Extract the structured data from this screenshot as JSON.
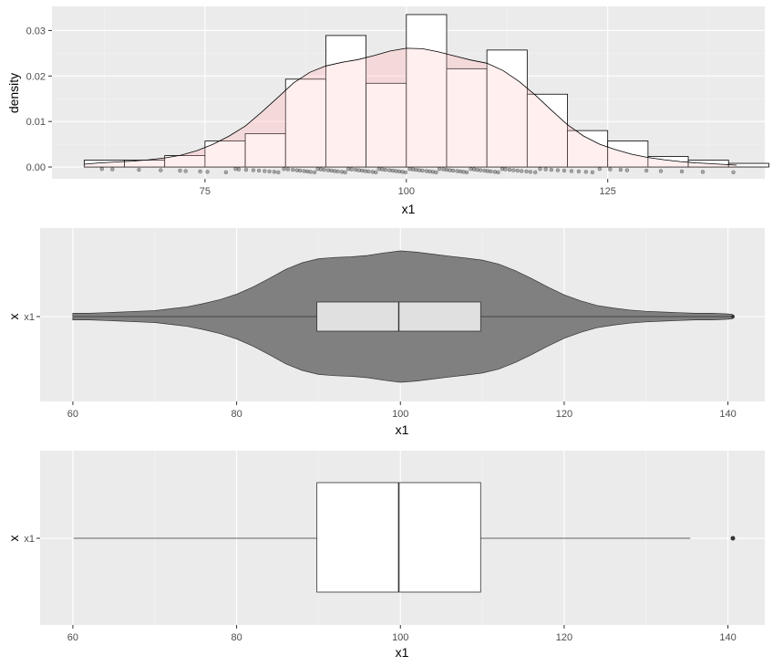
{
  "colors": {
    "panel_bg": "#ebebeb",
    "grid_major": "#ffffff",
    "grid_minor": "#f3f3f3",
    "hist_fill": "#ffffff",
    "hist_stroke": "#000000",
    "density_fill": "#ffc0c0",
    "violin_fill": "#808080",
    "inner_box_fill": "#e0e0e0",
    "box_fill": "#ffffff"
  },
  "chart_data": [
    {
      "type": "histogram",
      "xlabel": "x1",
      "ylabel": "density",
      "xlim": [
        56,
        144.5
      ],
      "ylim": [
        -0.0026,
        0.0353
      ],
      "x_ticks": [
        75,
        100,
        125
      ],
      "y_ticks": [
        0.0,
        0.01,
        0.02,
        0.03
      ],
      "y_tick_labels": [
        "0.00",
        "0.01",
        "0.02",
        "0.03"
      ],
      "bin_width": 5,
      "bins": [
        {
          "x0": 60,
          "x1": 65,
          "density": 0.0015
        },
        {
          "x0": 65,
          "x1": 70,
          "density": 0.0015
        },
        {
          "x0": 70,
          "x1": 75,
          "density": 0.0025
        },
        {
          "x0": 75,
          "x1": 80,
          "density": 0.0057
        },
        {
          "x0": 80,
          "x1": 85,
          "density": 0.0073
        },
        {
          "x0": 85,
          "x1": 90,
          "density": 0.0193
        },
        {
          "x0": 90,
          "x1": 95,
          "density": 0.0289
        },
        {
          "x0": 95,
          "x1": 100,
          "density": 0.0184
        },
        {
          "x0": 100,
          "x1": 105,
          "density": 0.0335
        },
        {
          "x0": 105,
          "x1": 110,
          "density": 0.0216
        },
        {
          "x0": 110,
          "x1": 115,
          "density": 0.0257
        },
        {
          "x0": 115,
          "x1": 120,
          "density": 0.016
        },
        {
          "x0": 120,
          "x1": 125,
          "density": 0.008
        },
        {
          "x0": 125,
          "x1": 130,
          "density": 0.0057
        },
        {
          "x0": 130,
          "x1": 135,
          "density": 0.0023
        },
        {
          "x0": 135,
          "x1": 140,
          "density": 0.0015
        },
        {
          "x0": 140,
          "x1": 145,
          "density": 0.0008
        }
      ],
      "density_curve": [
        [
          60,
          0.0006
        ],
        [
          62,
          0.0009
        ],
        [
          64,
          0.0011
        ],
        [
          66,
          0.0013
        ],
        [
          68,
          0.0016
        ],
        [
          70,
          0.002
        ],
        [
          72,
          0.0026
        ],
        [
          74,
          0.0036
        ],
        [
          76,
          0.005
        ],
        [
          78,
          0.0068
        ],
        [
          80,
          0.009
        ],
        [
          82,
          0.012
        ],
        [
          84,
          0.0152
        ],
        [
          86,
          0.0185
        ],
        [
          88,
          0.0208
        ],
        [
          90,
          0.0222
        ],
        [
          92,
          0.023
        ],
        [
          94,
          0.0236
        ],
        [
          96,
          0.0245
        ],
        [
          98,
          0.0255
        ],
        [
          100,
          0.0261
        ],
        [
          102,
          0.026
        ],
        [
          104,
          0.0253
        ],
        [
          106,
          0.0244
        ],
        [
          108,
          0.0235
        ],
        [
          110,
          0.0228
        ],
        [
          112,
          0.0212
        ],
        [
          114,
          0.0188
        ],
        [
          116,
          0.0158
        ],
        [
          118,
          0.0125
        ],
        [
          120,
          0.0093
        ],
        [
          122,
          0.0068
        ],
        [
          124,
          0.005
        ],
        [
          126,
          0.0038
        ],
        [
          128,
          0.0028
        ],
        [
          130,
          0.0021
        ],
        [
          132,
          0.0016
        ],
        [
          134,
          0.0012
        ],
        [
          136,
          0.0009
        ],
        [
          138,
          0.0007
        ],
        [
          140,
          0.0005
        ],
        [
          141,
          0.0004
        ]
      ],
      "rug_points": [
        62.2,
        63.5,
        66.8,
        69.5,
        71.9,
        72.6,
        74.4,
        75.3,
        77.6,
        78.8,
        79.2,
        80.1,
        81.0,
        81.7,
        82.4,
        83.0,
        83.6,
        84.1,
        84.8,
        85.3,
        85.9,
        86.4,
        86.8,
        87.3,
        87.7,
        88.1,
        88.6,
        89.0,
        89.4,
        89.8,
        90.3,
        90.7,
        91.1,
        91.5,
        92.0,
        92.4,
        92.8,
        93.2,
        93.7,
        94.1,
        94.5,
        94.9,
        95.3,
        95.8,
        96.2,
        96.6,
        97.0,
        97.4,
        97.9,
        98.3,
        98.7,
        99.1,
        99.5,
        99.9,
        100.4,
        100.8,
        101.2,
        101.6,
        102.0,
        102.5,
        102.9,
        103.3,
        103.7,
        104.1,
        104.6,
        105.0,
        105.4,
        105.8,
        106.3,
        106.7,
        107.1,
        107.5,
        108.0,
        108.4,
        108.8,
        109.2,
        109.7,
        110.1,
        110.5,
        111.0,
        111.4,
        111.9,
        112.3,
        112.8,
        113.3,
        113.8,
        114.3,
        114.9,
        115.4,
        116.0,
        116.6,
        117.3,
        118.0,
        118.8,
        119.6,
        120.5,
        121.4,
        122.3,
        123.1,
        124.0,
        125.3,
        126.6,
        127.4,
        129.8,
        131.6,
        134.2,
        136.8,
        140.6
      ]
    },
    {
      "type": "violin",
      "xlabel": "x1",
      "ylabel": "x",
      "category": "x1",
      "xlim": [
        56,
        144.5
      ],
      "x_ticks": [
        60,
        80,
        100,
        120,
        140
      ],
      "quartiles": {
        "min": 60.1,
        "q1": 89.8,
        "median": 99.8,
        "q3": 109.8,
        "max": 140.6
      },
      "half_width": [
        [
          60,
          0.05
        ],
        [
          62,
          0.05
        ],
        [
          64,
          0.06
        ],
        [
          66,
          0.07
        ],
        [
          68,
          0.08
        ],
        [
          70,
          0.09
        ],
        [
          72,
          0.12
        ],
        [
          74,
          0.15
        ],
        [
          76,
          0.2
        ],
        [
          78,
          0.26
        ],
        [
          80,
          0.34
        ],
        [
          82,
          0.45
        ],
        [
          84,
          0.58
        ],
        [
          86,
          0.72
        ],
        [
          88,
          0.82
        ],
        [
          90,
          0.88
        ],
        [
          92,
          0.9
        ],
        [
          94,
          0.91
        ],
        [
          96,
          0.93
        ],
        [
          98,
          0.97
        ],
        [
          100,
          1.0
        ],
        [
          102,
          0.98
        ],
        [
          104,
          0.95
        ],
        [
          106,
          0.92
        ],
        [
          108,
          0.89
        ],
        [
          110,
          0.86
        ],
        [
          112,
          0.8
        ],
        [
          114,
          0.7
        ],
        [
          116,
          0.58
        ],
        [
          118,
          0.45
        ],
        [
          120,
          0.33
        ],
        [
          122,
          0.24
        ],
        [
          124,
          0.17
        ],
        [
          126,
          0.13
        ],
        [
          128,
          0.1
        ],
        [
          130,
          0.08
        ],
        [
          132,
          0.07
        ],
        [
          134,
          0.06
        ],
        [
          136,
          0.05
        ],
        [
          138,
          0.05
        ],
        [
          140,
          0.04
        ],
        [
          140.6,
          0.03
        ]
      ]
    },
    {
      "type": "box",
      "xlabel": "x1",
      "ylabel": "x",
      "category": "x1",
      "xlim": [
        56,
        144.5
      ],
      "x_ticks": [
        60,
        80,
        100,
        120,
        140
      ],
      "min_whisker": 60.1,
      "q1": 89.8,
      "median": 99.8,
      "q3": 109.8,
      "max_whisker": 135.4,
      "outliers": [
        140.6
      ]
    }
  ]
}
